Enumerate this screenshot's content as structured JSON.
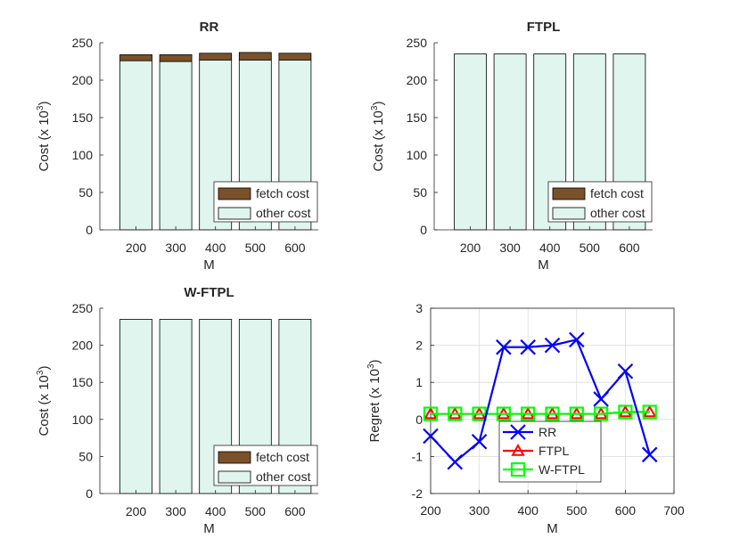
{
  "chart_data": [
    {
      "type": "bar",
      "title": "RR",
      "xlabel": "M",
      "ylabel": "Cost (x 10",
      "ylabel_exp": "3",
      "ylabel_close": ")",
      "categories": [
        "200",
        "300",
        "400",
        "500",
        "600"
      ],
      "series": [
        {
          "name": "other cost",
          "values": [
            226,
            225,
            227,
            227,
            227
          ],
          "color": "#dff5ee"
        },
        {
          "name": "fetch cost",
          "values": [
            8,
            9,
            9,
            10,
            9
          ],
          "color": "#7a5128"
        }
      ],
      "ylim": [
        0,
        250
      ],
      "yticks": [
        "0",
        "50",
        "100",
        "150",
        "200",
        "250"
      ],
      "legend_position": "bottom-right",
      "grid": false
    },
    {
      "type": "bar",
      "title": "FTPL",
      "xlabel": "M",
      "ylabel": "Cost (x 10",
      "ylabel_exp": "3",
      "ylabel_close": ")",
      "categories": [
        "200",
        "300",
        "400",
        "500",
        "600"
      ],
      "series": [
        {
          "name": "other cost",
          "values": [
            235,
            235,
            235,
            235,
            235
          ],
          "color": "#dff5ee"
        },
        {
          "name": "fetch cost",
          "values": [
            0,
            0,
            0,
            0,
            0
          ],
          "color": "#7a5128"
        }
      ],
      "ylim": [
        0,
        250
      ],
      "yticks": [
        "0",
        "50",
        "100",
        "150",
        "200",
        "250"
      ],
      "legend_position": "bottom-right",
      "grid": false
    },
    {
      "type": "bar",
      "title": "W-FTPL",
      "xlabel": "M",
      "ylabel": "Cost (x 10",
      "ylabel_exp": "3",
      "ylabel_close": ")",
      "categories": [
        "200",
        "300",
        "400",
        "500",
        "600"
      ],
      "series": [
        {
          "name": "other cost",
          "values": [
            235,
            235,
            235,
            235,
            235
          ],
          "color": "#dff5ee"
        },
        {
          "name": "fetch cost",
          "values": [
            0,
            0,
            0,
            0,
            0
          ],
          "color": "#7a5128"
        }
      ],
      "ylim": [
        0,
        250
      ],
      "yticks": [
        "0",
        "50",
        "100",
        "150",
        "200",
        "250"
      ],
      "legend_position": "bottom-right",
      "grid": false
    },
    {
      "type": "line",
      "title": "",
      "xlabel": "M",
      "ylabel": "Regret (x 10",
      "ylabel_exp": "3",
      "ylabel_close": ")",
      "x": [
        200,
        250,
        300,
        350,
        400,
        450,
        500,
        550,
        600,
        650
      ],
      "series": [
        {
          "name": "RR",
          "marker": "x",
          "color": "#0000ff",
          "values": [
            -0.45,
            -1.15,
            -0.6,
            1.95,
            1.95,
            2.0,
            2.15,
            0.55,
            1.3,
            -0.95
          ]
        },
        {
          "name": "FTPL",
          "marker": "triangle",
          "color": "#ff0000",
          "values": [
            0.15,
            0.15,
            0.15,
            0.15,
            0.15,
            0.15,
            0.15,
            0.15,
            0.2,
            0.2
          ]
        },
        {
          "name": "W-FTPL",
          "marker": "square",
          "color": "#00ff00",
          "values": [
            0.15,
            0.15,
            0.15,
            0.15,
            0.15,
            0.15,
            0.15,
            0.15,
            0.2,
            0.2
          ]
        }
      ],
      "xlim": [
        200,
        700
      ],
      "ylim": [
        -2,
        3
      ],
      "xticks": [
        "200",
        "300",
        "400",
        "500",
        "600",
        "700"
      ],
      "yticks": [
        "-2",
        "-1",
        "0",
        "1",
        "2",
        "3"
      ],
      "legend_position": "bottom-center",
      "grid": true
    }
  ]
}
